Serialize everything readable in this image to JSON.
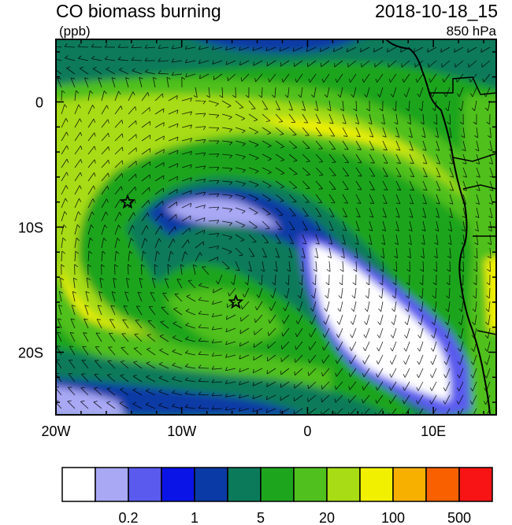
{
  "header": {
    "title": "CO biomass burning",
    "units": "(ppb)",
    "datetime": "2018-10-18_15",
    "level": "850 hPa"
  },
  "map": {
    "lon_range": [
      -20,
      15
    ],
    "lat_range": [
      -25,
      5
    ],
    "lon_ticks": [
      {
        "value": -20,
        "label": "20W"
      },
      {
        "value": -10,
        "label": "10W"
      },
      {
        "value": 0,
        "label": "0"
      },
      {
        "value": 10,
        "label": "10E"
      }
    ],
    "lat_ticks": [
      {
        "value": 0,
        "label": "0"
      },
      {
        "value": -10,
        "label": "10S"
      },
      {
        "value": -20,
        "label": "20S"
      }
    ],
    "markers": [
      {
        "type": "star",
        "lon": -14.3,
        "lat": -8.0
      },
      {
        "type": "star",
        "lon": -5.7,
        "lat": -16.0
      }
    ]
  },
  "colorbar": {
    "colors": [
      "#ffffff",
      "#a8a8f5",
      "#5a5aee",
      "#0a14e6",
      "#0a3aa6",
      "#0a7a5a",
      "#1ea51e",
      "#50c01e",
      "#a8dc14",
      "#f0f000",
      "#f8b000",
      "#f86000",
      "#f81414"
    ],
    "labels": [
      {
        "after_box": 2,
        "text": "0.2"
      },
      {
        "after_box": 4,
        "text": "1"
      },
      {
        "after_box": 6,
        "text": "5"
      },
      {
        "after_box": 8,
        "text": "20"
      },
      {
        "after_box": 10,
        "text": "100"
      },
      {
        "after_box": 12,
        "text": "500"
      }
    ]
  },
  "field_colors": {
    "deep_blue": "#0a3aa6",
    "teal": "#0a7a5a",
    "green": "#1ea51e",
    "light_green": "#50c01e",
    "yellow_green": "#a8dc14",
    "yellow": "#f0f000",
    "pale_blue": "#a8a8f5",
    "mid_blue": "#5a5aee",
    "blue": "#0a14e6"
  }
}
